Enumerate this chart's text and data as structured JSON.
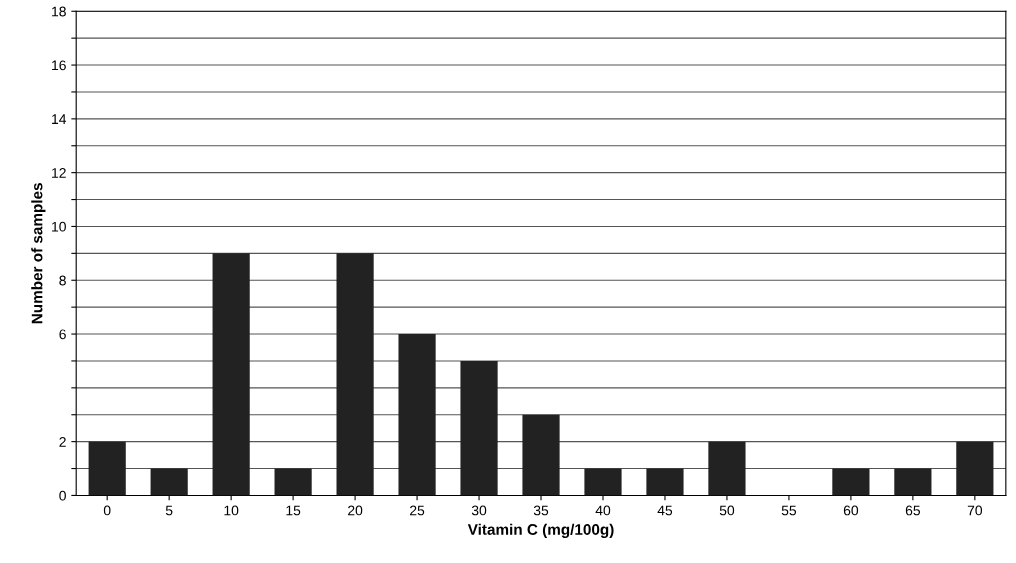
{
  "chart_data": {
    "type": "bar",
    "xlabel": "Vitamin C (mg/100g)",
    "ylabel": "Number of samples",
    "categories": [
      "0",
      "5",
      "10",
      "15",
      "20",
      "25",
      "30",
      "35",
      "40",
      "45",
      "50",
      "55",
      "60",
      "65",
      "70"
    ],
    "values": [
      2,
      1,
      9,
      1,
      9,
      6,
      5,
      3,
      1,
      1,
      2,
      0,
      1,
      1,
      2
    ],
    "color": "#222222",
    "ylim": [
      0,
      18
    ],
    "yticks": [
      0,
      {
        "value": 1,
        "label": null
      },
      2,
      {
        "value": 3,
        "label": null
      },
      {
        "value": 4,
        "label": null
      },
      {
        "value": 5,
        "label": null
      },
      6,
      {
        "value": 7,
        "label": null
      },
      8,
      {
        "value": 9,
        "label": null
      },
      10,
      {
        "value": 11,
        "label": null
      },
      12,
      {
        "value": 13,
        "label": null
      },
      14,
      {
        "value": 15,
        "label": null
      },
      16,
      {
        "value": 17,
        "label": null
      },
      18
    ],
    "grid": "y",
    "legend": false
  }
}
